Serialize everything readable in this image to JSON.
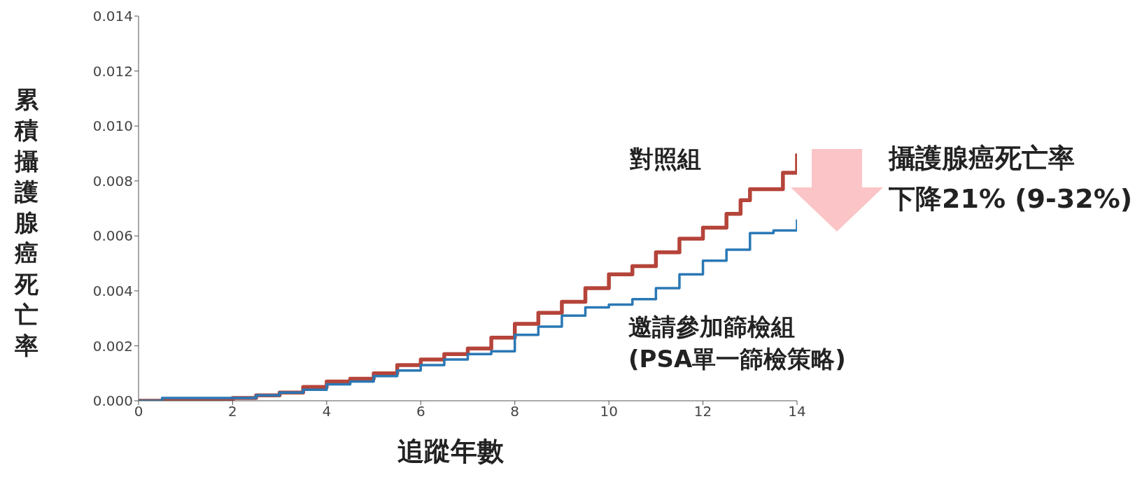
{
  "chart_data": {
    "type": "step",
    "xlabel": "追蹤年數",
    "ylabel": "累積攝護腺癌死亡率",
    "xlim": [
      0,
      14
    ],
    "xticks": [
      0,
      2,
      4,
      6,
      8,
      10,
      12,
      14
    ],
    "ylim": [
      0,
      0.014
    ],
    "yticks": [
      {
        "value": 0,
        "label": "0.000"
      },
      {
        "value": 0.002,
        "label": "0.002"
      },
      {
        "value": 0.004,
        "label": "0.004"
      },
      {
        "value": 0.006,
        "label": "0.006"
      },
      {
        "value": 0.008,
        "label": "0.008"
      },
      {
        "value": 0.01,
        "label": "0.010"
      },
      {
        "value": 0.012,
        "label": "0.012"
      },
      {
        "value": 0.014,
        "label": "0.014"
      }
    ],
    "series": [
      {
        "name": "對照組",
        "color": "#b5443a",
        "x": [
          0,
          1,
          1.5,
          2,
          2.5,
          3,
          3.5,
          4,
          4.5,
          5,
          5.5,
          6,
          6.5,
          7,
          7.5,
          8,
          8.5,
          9,
          9.5,
          10,
          10.5,
          11,
          11.5,
          12,
          12.5,
          12.8,
          13,
          13.5,
          13.7,
          14
        ],
        "values": [
          0,
          0,
          0,
          0.0001,
          0.0002,
          0.0003,
          0.0005,
          0.0007,
          0.0008,
          0.001,
          0.0013,
          0.0015,
          0.0017,
          0.0019,
          0.0023,
          0.0028,
          0.0032,
          0.0036,
          0.0041,
          0.0046,
          0.0049,
          0.0054,
          0.0059,
          0.0063,
          0.0068,
          0.0073,
          0.0077,
          0.0077,
          0.0083,
          0.009
        ]
      },
      {
        "name": "邀請參加篩檢組\n(PSA單一篩檢策略)",
        "color": "#2a78b5",
        "x": [
          0,
          0.5,
          1,
          1.5,
          2,
          2.5,
          3,
          3.5,
          4,
          4.5,
          5,
          5.5,
          6,
          6.5,
          7,
          7.5,
          8,
          8.5,
          9,
          9.5,
          10,
          10.5,
          11,
          11.5,
          12,
          12.5,
          13,
          13.5,
          14
        ],
        "values": [
          0,
          0.0001,
          0.0001,
          0.0001,
          0.0001,
          0.0002,
          0.0003,
          0.0004,
          0.0006,
          0.0007,
          0.0009,
          0.0011,
          0.0013,
          0.0015,
          0.0017,
          0.0018,
          0.0024,
          0.0027,
          0.0031,
          0.0034,
          0.0035,
          0.0037,
          0.0041,
          0.0046,
          0.0051,
          0.0055,
          0.0061,
          0.0062,
          0.0066
        ]
      }
    ],
    "annotations": [
      "攝護腺癌死亡率",
      "下降21% (9-32%)"
    ]
  }
}
